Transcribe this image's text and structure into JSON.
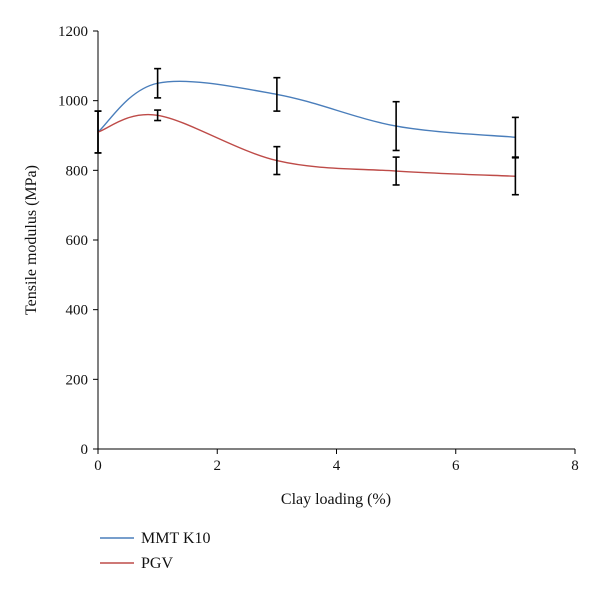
{
  "chart_data": {
    "type": "line",
    "xlabel": "Clay loading (%)",
    "ylabel": "Tensile modulus (MPa)",
    "xlim": [
      0,
      8
    ],
    "ylim": [
      0,
      1200
    ],
    "x_ticks": [
      0,
      2,
      4,
      6,
      8
    ],
    "y_ticks": [
      0,
      200,
      400,
      600,
      800,
      1000,
      1200
    ],
    "grid": false,
    "legend_position": "bottom-left",
    "series": [
      {
        "name": "MMT K10",
        "color": "#4a7ebb",
        "x": [
          0,
          1,
          3,
          5,
          7
        ],
        "y": [
          910,
          1050,
          1018,
          927,
          895
        ],
        "error": [
          60,
          42,
          48,
          70,
          57
        ]
      },
      {
        "name": "PGV",
        "color": "#be4b48",
        "x": [
          0,
          1,
          3,
          5,
          7
        ],
        "y": [
          910,
          958,
          828,
          798,
          783
        ],
        "error": [
          60,
          15,
          40,
          40,
          53
        ]
      }
    ]
  }
}
